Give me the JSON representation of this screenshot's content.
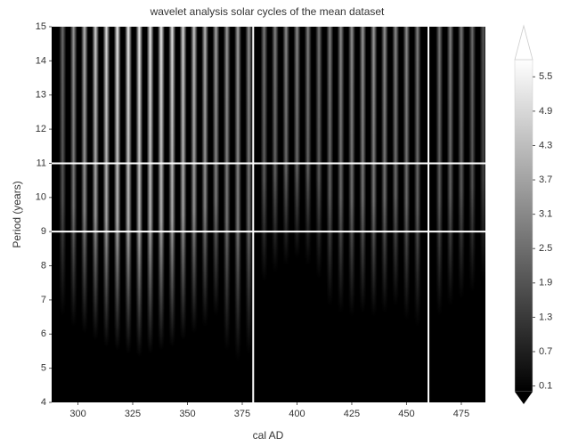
{
  "chart_data": {
    "type": "heatmap",
    "title": "wavelet analysis solar cycles of the mean dataset",
    "xlabel": "cal AD",
    "ylabel": "Period (years)",
    "xlim": [
      288,
      486
    ],
    "ylim": [
      4,
      15
    ],
    "xticks": [
      300,
      325,
      350,
      375,
      400,
      425,
      450,
      475
    ],
    "yticks": [
      4,
      5,
      6,
      7,
      8,
      9,
      10,
      11,
      12,
      13,
      14,
      15
    ],
    "clim": [
      0,
      5.8
    ],
    "cticks": [
      0.1,
      0.7,
      1.3,
      1.9,
      2.5,
      3.1,
      3.7,
      4.3,
      4.9,
      5.5
    ],
    "background": "#000000",
    "ridge_color": "#ffffff",
    "line_color": "#ffffff",
    "hlines": [
      9,
      11
    ],
    "vlines": [
      380,
      460
    ],
    "ridges": [
      {
        "x": 293,
        "low": 6.5,
        "peak": 2.5
      },
      {
        "x": 298,
        "low": 6.2,
        "peak": 3.5
      },
      {
        "x": 303,
        "low": 6.0,
        "peak": 4.2
      },
      {
        "x": 308,
        "low": 5.8,
        "peak": 4.8
      },
      {
        "x": 313,
        "low": 5.6,
        "peak": 5.2
      },
      {
        "x": 318,
        "low": 5.5,
        "peak": 5.5
      },
      {
        "x": 323,
        "low": 5.4,
        "peak": 5.6
      },
      {
        "x": 328,
        "low": 5.3,
        "peak": 5.6
      },
      {
        "x": 333,
        "low": 5.4,
        "peak": 5.5
      },
      {
        "x": 338,
        "low": 5.5,
        "peak": 5.5
      },
      {
        "x": 343,
        "low": 5.6,
        "peak": 5.3
      },
      {
        "x": 348,
        "low": 5.8,
        "peak": 5.0
      },
      {
        "x": 353,
        "low": 6.0,
        "peak": 4.6
      },
      {
        "x": 358,
        "low": 6.2,
        "peak": 4.2
      },
      {
        "x": 363,
        "low": 6.5,
        "peak": 3.8
      },
      {
        "x": 368,
        "low": 5.5,
        "peak": 3.6
      },
      {
        "x": 373,
        "low": 5.2,
        "peak": 3.8
      },
      {
        "x": 378,
        "low": 5.4,
        "peak": 3.4
      },
      {
        "x": 385,
        "low": 7.5,
        "peak": 2.8
      },
      {
        "x": 390,
        "low": 7.8,
        "peak": 3.0
      },
      {
        "x": 395,
        "low": 8.0,
        "peak": 3.2
      },
      {
        "x": 400,
        "low": 8.2,
        "peak": 3.2
      },
      {
        "x": 405,
        "low": 8.0,
        "peak": 3.0
      },
      {
        "x": 410,
        "low": 7.6,
        "peak": 2.8
      },
      {
        "x": 415,
        "low": 6.8,
        "peak": 3.0
      },
      {
        "x": 420,
        "low": 6.6,
        "peak": 3.2
      },
      {
        "x": 425,
        "low": 6.5,
        "peak": 3.4
      },
      {
        "x": 430,
        "low": 6.6,
        "peak": 3.5
      },
      {
        "x": 435,
        "low": 6.5,
        "peak": 3.6
      },
      {
        "x": 440,
        "low": 6.6,
        "peak": 3.4
      },
      {
        "x": 445,
        "low": 6.8,
        "peak": 3.2
      },
      {
        "x": 450,
        "low": 6.4,
        "peak": 3.3
      },
      {
        "x": 455,
        "low": 6.2,
        "peak": 3.0
      },
      {
        "x": 465,
        "low": 6.5,
        "peak": 2.8
      },
      {
        "x": 470,
        "low": 6.8,
        "peak": 3.0
      },
      {
        "x": 475,
        "low": 7.0,
        "peak": 2.8
      },
      {
        "x": 480,
        "low": 7.2,
        "peak": 2.5
      },
      {
        "x": 485,
        "low": 7.5,
        "peak": 2.0
      }
    ]
  }
}
